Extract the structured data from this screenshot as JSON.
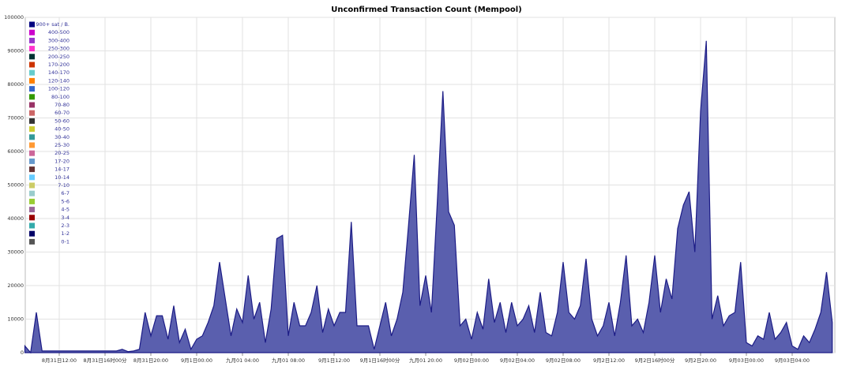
{
  "chart_data": {
    "type": "area",
    "title": "Unconfirmed Transaction Count (Mempool)",
    "categories": [
      null,
      null,
      null,
      null,
      null,
      null,
      "8月31日12:00",
      null,
      null,
      null,
      null,
      null,
      null,
      null,
      "8月31日16时00分",
      null,
      null,
      null,
      null,
      null,
      null,
      null,
      "8月31日20:00",
      null,
      null,
      null,
      null,
      null,
      null,
      null,
      "9月1日00:00",
      null,
      null,
      null,
      null,
      null,
      null,
      null,
      "九月01 04:00",
      null,
      null,
      null,
      null,
      null,
      null,
      null,
      "九月01 08:00",
      null,
      null,
      null,
      null,
      null,
      null,
      null,
      "9月1日12:00",
      null,
      null,
      null,
      null,
      null,
      null,
      null,
      "9月1日16时00分",
      null,
      null,
      null,
      null,
      null,
      null,
      null,
      "九月01 20:00",
      null,
      null,
      null,
      null,
      null,
      null,
      null,
      "9月02日00:00",
      null,
      null,
      null,
      null,
      null,
      null,
      null,
      "9月02日04:00",
      null,
      null,
      null,
      null,
      null,
      null,
      null,
      "9月02日08:00",
      null,
      null,
      null,
      null,
      null,
      null,
      null,
      "9月2日12:00",
      null,
      null,
      null,
      null,
      null,
      null,
      null,
      "9月2日16时00分",
      null,
      null,
      null,
      null,
      null,
      null,
      null,
      "9月2日20:00",
      null,
      null,
      null,
      null,
      null,
      null,
      null,
      "9月03日00:00",
      null,
      null,
      null,
      null,
      null,
      null,
      null,
      "9月03日04:00",
      null,
      null,
      null,
      null,
      null,
      null,
      null
    ],
    "series": [
      {
        "name": "1-2",
        "color": "#5a5fae",
        "values": [
          2000,
          0,
          12000,
          500,
          500,
          500,
          500,
          500,
          500,
          500,
          500,
          500,
          500,
          500,
          500,
          500,
          500,
          1000,
          300,
          500,
          1000,
          12000,
          5000,
          11000,
          11000,
          4000,
          14000,
          3000,
          7000,
          1000,
          4000,
          5000,
          9000,
          14000,
          27000,
          16000,
          5000,
          13000,
          9000,
          23000,
          10000,
          15000,
          3000,
          13000,
          34000,
          35000,
          5000,
          15000,
          8000,
          8000,
          12000,
          20000,
          6000,
          13000,
          8000,
          12000,
          12000,
          39000,
          8000,
          8000,
          8000,
          1000,
          8000,
          15000,
          5000,
          10000,
          18000,
          38000,
          59000,
          14000,
          23000,
          12000,
          44000,
          78000,
          42000,
          38000,
          8000,
          10000,
          4000,
          12000,
          7000,
          22000,
          9000,
          15000,
          6000,
          15000,
          8000,
          10000,
          14000,
          6000,
          18000,
          6000,
          5000,
          12000,
          27000,
          12000,
          10000,
          14000,
          28000,
          10000,
          5000,
          8000,
          15000,
          5000,
          15000,
          29000,
          8000,
          10000,
          6000,
          15000,
          29000,
          12000,
          22000,
          16000,
          37000,
          44000,
          48000,
          30000,
          72000,
          93000,
          10000,
          17000,
          8000,
          11000,
          12000,
          27000,
          3000,
          2000,
          5000,
          4000,
          12000,
          4000,
          6000,
          9000,
          2000,
          1000,
          5000,
          3000,
          7000,
          12000,
          24000,
          9000
        ]
      }
    ],
    "legend": [
      {
        "name": "900+ sat / B.",
        "color": "#000080"
      },
      {
        "name": "400-500",
        "color": "#cc00cc"
      },
      {
        "name": "300-400",
        "color": "#9933cc"
      },
      {
        "name": "250-300",
        "color": "#ff33cc"
      },
      {
        "name": "200-250",
        "color": "#003333"
      },
      {
        "name": "170-200",
        "color": "#cc3300"
      },
      {
        "name": "140-170",
        "color": "#66cccc"
      },
      {
        "name": "120-140",
        "color": "#ff8000"
      },
      {
        "name": "100-120",
        "color": "#3366cc"
      },
      {
        "name": "80-100",
        "color": "#339900"
      },
      {
        "name": "70-80",
        "color": "#993366"
      },
      {
        "name": "60-70",
        "color": "#cc6666"
      },
      {
        "name": "50-60",
        "color": "#333333"
      },
      {
        "name": "40-50",
        "color": "#cccc33"
      },
      {
        "name": "30-40",
        "color": "#339999"
      },
      {
        "name": "25-30",
        "color": "#ff9933"
      },
      {
        "name": "20-25",
        "color": "#cc6699"
      },
      {
        "name": "17-20",
        "color": "#6699cc"
      },
      {
        "name": "14-17",
        "color": "#663333"
      },
      {
        "name": "10-14",
        "color": "#66ccff"
      },
      {
        "name": "7-10",
        "color": "#cccc66"
      },
      {
        "name": "6-7",
        "color": "#99cccc"
      },
      {
        "name": "5-6",
        "color": "#99cc33"
      },
      {
        "name": "4-5",
        "color": "#996699"
      },
      {
        "name": "3-4",
        "color": "#990000"
      },
      {
        "name": "2-3",
        "color": "#33aaaa"
      },
      {
        "name": "1-2",
        "color": "#000066"
      },
      {
        "name": "0-1",
        "color": "#555555"
      }
    ],
    "ylim": [
      0,
      100000
    ],
    "yticks": [
      0,
      10000,
      20000,
      30000,
      40000,
      50000,
      60000,
      70000,
      80000,
      90000,
      100000
    ],
    "grid": true
  }
}
